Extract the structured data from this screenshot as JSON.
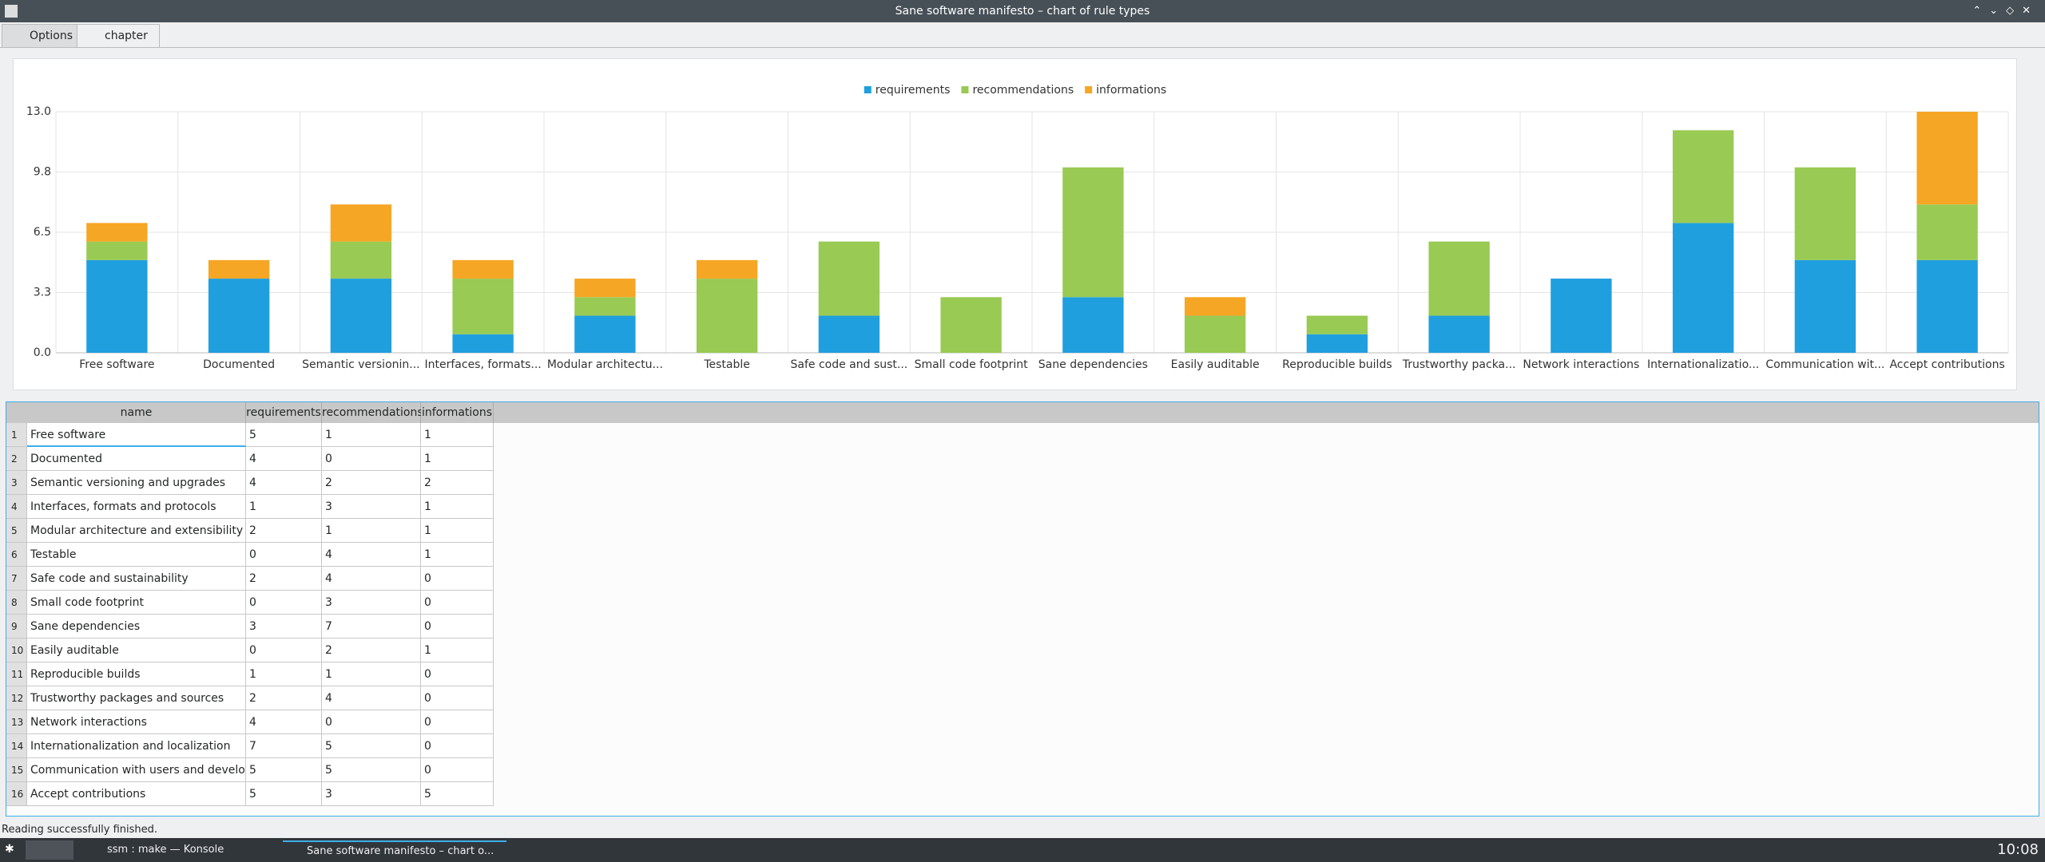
{
  "window": {
    "title": "Sane software manifesto – chart of rule types",
    "tabs": [
      "Options",
      "chapter"
    ],
    "status": "Reading successfully finished.",
    "taskbar": [
      "ssm : make — Konsole",
      "Sane software manifesto – chart o..."
    ],
    "clock": "10:08"
  },
  "chart_data": {
    "type": "stacked_bar",
    "categories": [
      "Free software",
      "Documented",
      "Semantic versionin...",
      "Interfaces, formats...",
      "Modular architectu...",
      "Testable",
      "Safe code and sust...",
      "Small code footprint",
      "Sane dependencies",
      "Easily auditable",
      "Reproducible builds",
      "Trustworthy packa...",
      "Network interactions",
      "Internationalizatio...",
      "Communication wit...",
      "Accept contributions"
    ],
    "series": [
      {
        "name": "requirements",
        "color": "#209fdf",
        "values": [
          5,
          4,
          4,
          1,
          2,
          0,
          2,
          0,
          3,
          0,
          1,
          2,
          4,
          7,
          5,
          5
        ]
      },
      {
        "name": "recommendations",
        "color": "#99ca53",
        "values": [
          1,
          0,
          2,
          3,
          1,
          4,
          4,
          3,
          7,
          2,
          1,
          4,
          0,
          5,
          5,
          3
        ]
      },
      {
        "name": "informations",
        "color": "#f6a625",
        "values": [
          1,
          1,
          2,
          1,
          1,
          1,
          0,
          0,
          0,
          1,
          0,
          0,
          0,
          0,
          0,
          5
        ]
      }
    ],
    "ylim": [
      0,
      13
    ],
    "yticks": [
      {
        "value": 0,
        "label": "0.0"
      },
      {
        "value": 3.25,
        "label": "3.3"
      },
      {
        "value": 6.5,
        "label": "6.5"
      },
      {
        "value": 9.75,
        "label": "9.8"
      },
      {
        "value": 13,
        "label": "13.0"
      }
    ],
    "grid": true,
    "legend": "top"
  },
  "table": {
    "name_header": "name",
    "rows": [
      {
        "number": 1,
        "name": "Free software"
      },
      {
        "number": 2,
        "name": "Documented"
      },
      {
        "number": 3,
        "name": "Semantic versioning and upgrades"
      },
      {
        "number": 4,
        "name": "Interfaces, formats and protocols"
      },
      {
        "number": 5,
        "name": "Modular architecture and extensibility"
      },
      {
        "number": 6,
        "name": "Testable"
      },
      {
        "number": 7,
        "name": "Safe code and sustainability"
      },
      {
        "number": 8,
        "name": "Small code footprint"
      },
      {
        "number": 9,
        "name": "Sane dependencies"
      },
      {
        "number": 10,
        "name": "Easily auditable"
      },
      {
        "number": 11,
        "name": "Reproducible builds"
      },
      {
        "number": 12,
        "name": "Trustworthy packages and sources"
      },
      {
        "number": 13,
        "name": "Network interactions"
      },
      {
        "number": 14,
        "name": "Internationalization and localization"
      },
      {
        "number": 15,
        "name": "Communication with users and developers"
      },
      {
        "number": 16,
        "name": "Accept contributions"
      }
    ]
  }
}
